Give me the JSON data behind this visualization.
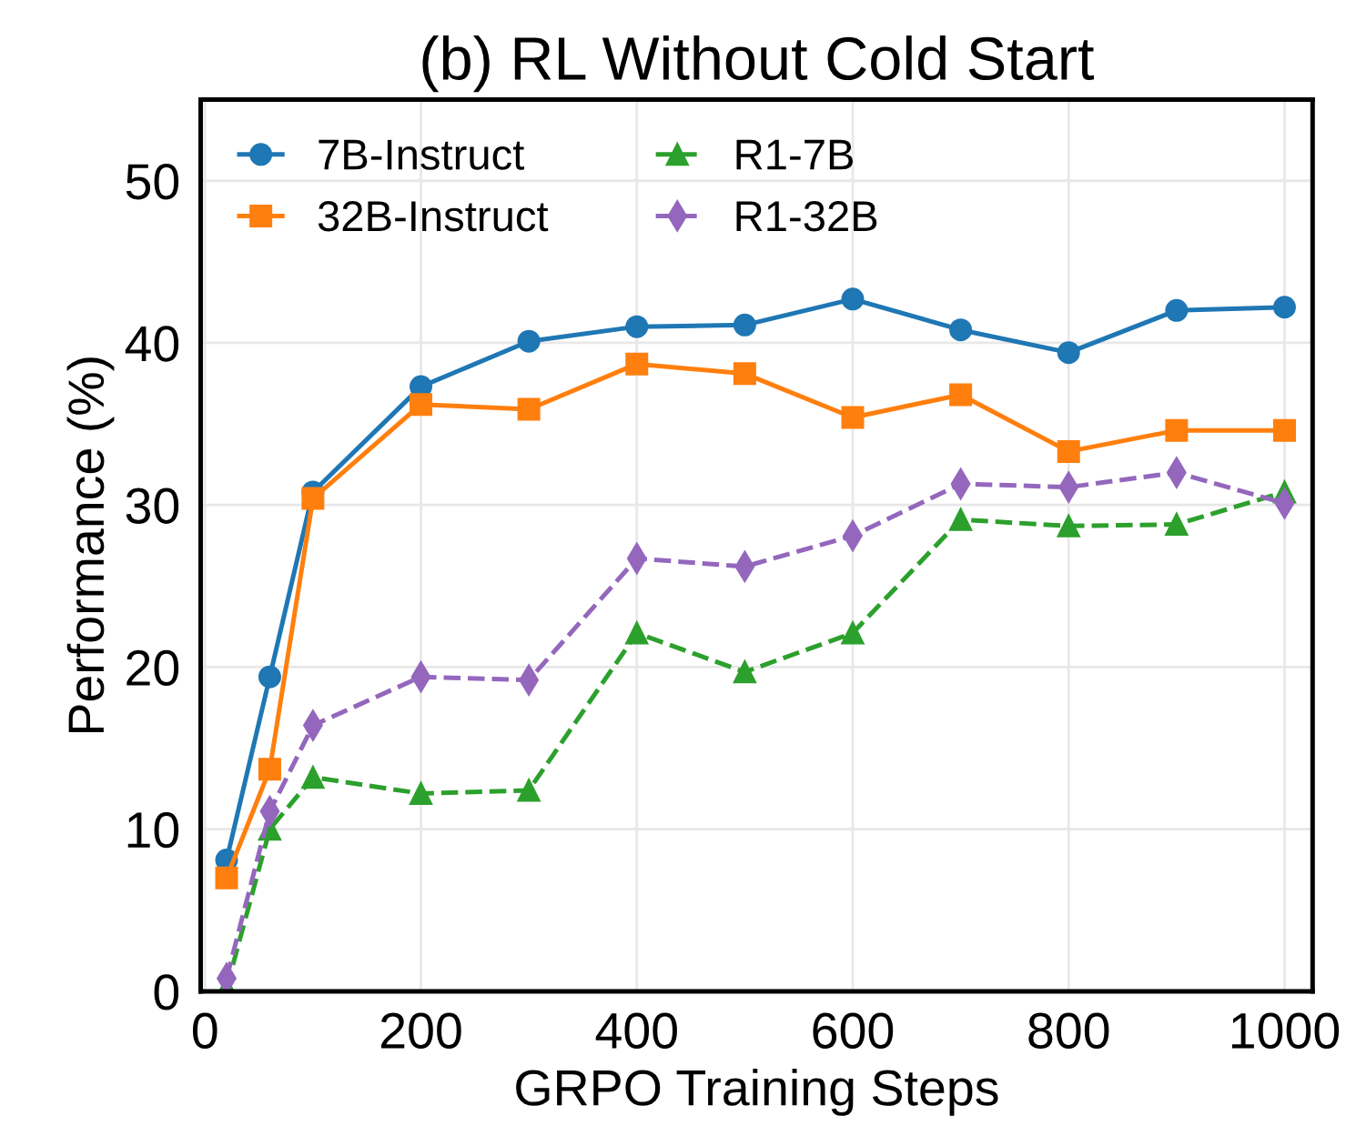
{
  "chart_data": {
    "type": "line",
    "title": "(b) RL Without Cold Start",
    "xlabel": "GRPO Training Steps",
    "ylabel": "Performance (%)",
    "x": [
      20,
      60,
      100,
      200,
      300,
      400,
      500,
      600,
      700,
      800,
      900,
      1000
    ],
    "series": [
      {
        "name": "7B-Instruct",
        "color": "#1f77b4",
        "marker": "circle",
        "line_style": "solid",
        "values": [
          8.1,
          19.4,
          30.8,
          37.3,
          40.1,
          41.0,
          41.1,
          42.7,
          40.8,
          39.4,
          42.0,
          42.2
        ]
      },
      {
        "name": "32B-Instruct",
        "color": "#ff7f0e",
        "marker": "square",
        "line_style": "solid",
        "values": [
          7.0,
          13.7,
          30.4,
          36.2,
          35.9,
          38.7,
          38.1,
          35.4,
          36.8,
          33.3,
          34.6,
          34.6
        ]
      },
      {
        "name": "R1-7B",
        "color": "#2ca02c",
        "marker": "triangle",
        "line_style": "dashed",
        "values": [
          0.2,
          10.0,
          13.2,
          12.2,
          12.4,
          22.1,
          19.7,
          22.1,
          29.1,
          28.7,
          28.8,
          30.8
        ]
      },
      {
        "name": "R1-32B",
        "color": "#9467bd",
        "marker": "diamond",
        "line_style": "dashed",
        "values": [
          0.8,
          11.1,
          16.4,
          19.4,
          19.2,
          26.7,
          26.2,
          28.1,
          31.3,
          31.1,
          32.0,
          30.1
        ]
      }
    ],
    "xlim": [
      -4,
      1026
    ],
    "ylim": [
      0,
      55
    ],
    "xticks": [
      0,
      200,
      400,
      600,
      800,
      1000
    ],
    "yticks": [
      0,
      10,
      20,
      30,
      40,
      50
    ],
    "grid": true,
    "legend": "top left"
  }
}
